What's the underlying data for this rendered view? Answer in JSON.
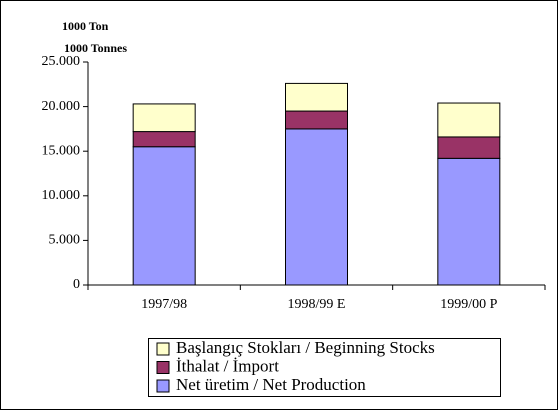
{
  "chart_data": {
    "type": "stacked_bar",
    "unit_label": "1000 Ton",
    "unit_label_en": "1000 Tonnes",
    "categories": [
      "1997/98",
      "1998/99 E",
      "1999/00 P"
    ],
    "series": [
      {
        "name": "Net üretim / Net Production",
        "color": "#9999ff",
        "values": [
          15500,
          17500,
          14200
        ]
      },
      {
        "name": "İthalat / İmport",
        "color": "#993366",
        "values": [
          1700,
          2000,
          2400
        ]
      },
      {
        "name": "Başlangıç Stokları / Beginning Stocks",
        "color": "#ffffcc",
        "values": [
          3100,
          3100,
          3800
        ]
      }
    ],
    "ylim": [
      0,
      25000
    ],
    "yticks": [
      0,
      {
        "value": 5000,
        "label": "5.000"
      },
      {
        "value": 10000,
        "label": "10.000"
      },
      {
        "value": 15000,
        "label": "15.000"
      },
      {
        "value": 20000,
        "label": "20.000"
      },
      {
        "value": 25000,
        "label": "25.000"
      }
    ],
    "legend": "bottom"
  }
}
